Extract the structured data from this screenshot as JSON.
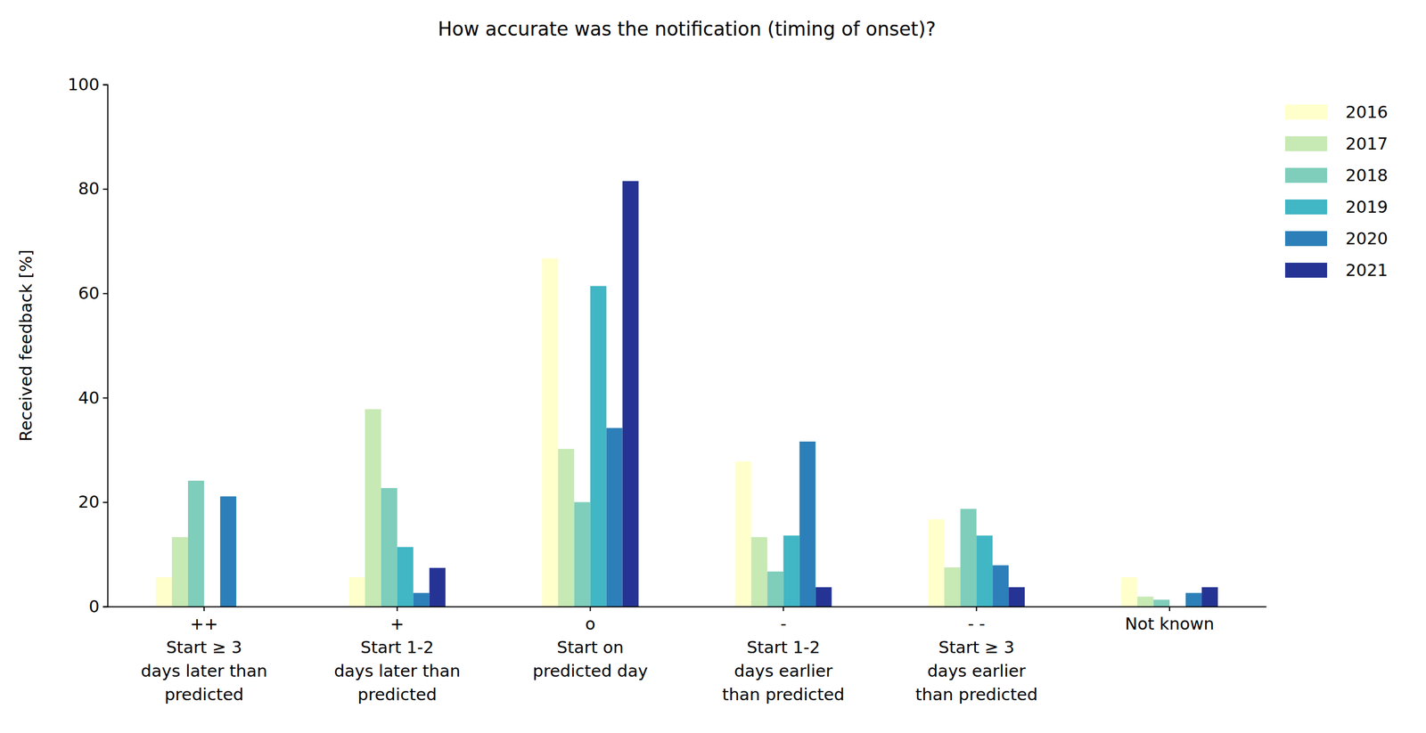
{
  "chart_data": {
    "type": "bar",
    "title": "How accurate was the notification (timing of onset)?",
    "y_label": "Received feedback [%]",
    "categories": [
      "++\nStart ≥ 3\ndays later than\npredicted",
      "+\nStart 1-2\ndays later than\npredicted",
      "o\nStart on\npredicted day",
      "-\nStart 1-2\ndays earlier\nthan predicted",
      "- -\nStart ≥ 3\ndays earlier\nthan predicted",
      "Not known"
    ],
    "series": [
      {
        "name": "2016",
        "color": "#ffffcc",
        "values": [
          5.6,
          5.6,
          66.7,
          27.8,
          16.7,
          5.6
        ]
      },
      {
        "name": "2017",
        "color": "#c7e9b4",
        "values": [
          13.3,
          37.8,
          30.2,
          13.3,
          7.5,
          1.9
        ]
      },
      {
        "name": "2018",
        "color": "#7fcdbb",
        "values": [
          24.1,
          22.7,
          20.0,
          6.7,
          18.7,
          1.3
        ]
      },
      {
        "name": "2019",
        "color": "#41b6c4",
        "values": [
          0,
          11.4,
          61.4,
          13.6,
          13.6,
          0
        ]
      },
      {
        "name": "2020",
        "color": "#2c7fb8",
        "values": [
          21.1,
          2.6,
          34.2,
          31.6,
          7.9,
          2.6
        ]
      },
      {
        "name": "2021",
        "color": "#253494",
        "values": [
          0,
          7.4,
          81.5,
          3.7,
          3.7,
          3.7
        ]
      }
    ],
    "ylim": [
      0,
      100
    ],
    "yticks": [
      0,
      20,
      40,
      60,
      80,
      100
    ],
    "grid": false,
    "legend": "right"
  }
}
